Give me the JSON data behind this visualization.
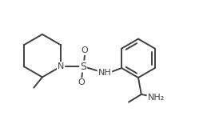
{
  "background": "#ffffff",
  "line_color": "#404040",
  "line_width": 1.4,
  "figsize": [
    2.69,
    1.75
  ],
  "dpi": 100,
  "xlim": [
    0,
    10.5
  ],
  "ylim": [
    0,
    6.8
  ]
}
